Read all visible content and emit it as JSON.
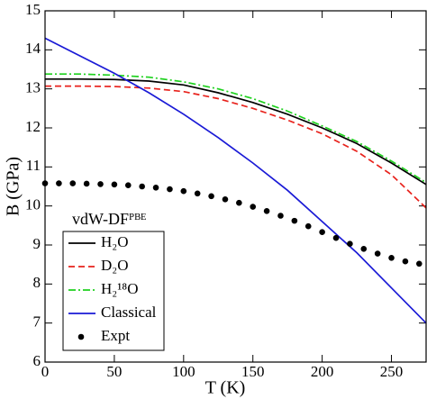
{
  "chart_data": {
    "type": "line",
    "x_label": "T (K)",
    "y_label": "B (GPa)",
    "xlim": [
      0,
      275
    ],
    "ylim": [
      6,
      15
    ],
    "xticks": [
      0,
      50,
      100,
      150,
      200,
      250
    ],
    "yticks": [
      6,
      7,
      8,
      9,
      10,
      11,
      12,
      13,
      14,
      15
    ],
    "legend_title": "vdW-DFᴾᴮᴱ",
    "legend_position": "lower left",
    "series": [
      {
        "name": "H₂O",
        "color": "#000000",
        "style": "solid",
        "x": [
          0,
          25,
          50,
          75,
          100,
          125,
          150,
          175,
          200,
          225,
          250,
          275
        ],
        "values": [
          13.25,
          13.25,
          13.24,
          13.2,
          13.1,
          12.9,
          12.65,
          12.35,
          12.0,
          11.6,
          11.1,
          10.55
        ]
      },
      {
        "name": "D₂O",
        "color": "#e8221c",
        "style": "dashed",
        "x": [
          0,
          25,
          50,
          75,
          100,
          125,
          150,
          175,
          200,
          225,
          250,
          275
        ],
        "values": [
          13.07,
          13.07,
          13.06,
          13.02,
          12.93,
          12.75,
          12.5,
          12.2,
          11.85,
          11.4,
          10.8,
          9.95
        ]
      },
      {
        "name": "H₂¹⁸O",
        "color": "#1fd11f",
        "style": "dashdot",
        "x": [
          0,
          25,
          50,
          75,
          100,
          125,
          150,
          175,
          200,
          225,
          250,
          275
        ],
        "values": [
          13.38,
          13.38,
          13.35,
          13.3,
          13.18,
          13.0,
          12.75,
          12.43,
          12.05,
          11.65,
          11.15,
          10.6
        ]
      },
      {
        "name": "Classical",
        "color": "#1a1ad6",
        "style": "solid",
        "x": [
          0,
          25,
          50,
          75,
          100,
          125,
          150,
          175,
          200,
          225,
          250,
          275
        ],
        "values": [
          14.3,
          13.85,
          13.4,
          12.9,
          12.35,
          11.75,
          11.1,
          10.4,
          9.6,
          8.8,
          7.9,
          7.0
        ]
      },
      {
        "name": "Expt",
        "color": "#000000",
        "style": "dots",
        "x": [
          0,
          10,
          20,
          30,
          40,
          50,
          60,
          70,
          80,
          90,
          100,
          110,
          120,
          130,
          140,
          150,
          160,
          170,
          180,
          190,
          200,
          210,
          220,
          230,
          240,
          250,
          260,
          270
        ],
        "values": [
          10.58,
          10.58,
          10.58,
          10.57,
          10.56,
          10.55,
          10.53,
          10.5,
          10.47,
          10.43,
          10.38,
          10.32,
          10.25,
          10.17,
          10.08,
          9.98,
          9.87,
          9.75,
          9.62,
          9.48,
          9.33,
          9.18,
          9.03,
          8.9,
          8.78,
          8.67,
          8.58,
          8.52
        ]
      }
    ]
  }
}
